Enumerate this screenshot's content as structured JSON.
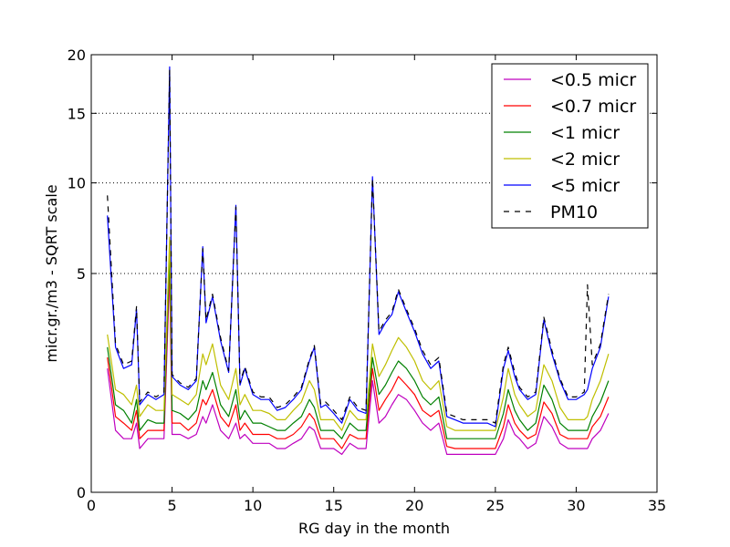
{
  "chart_data": {
    "type": "line",
    "title": "",
    "xlabel": "RG day in the month",
    "ylabel": "micr.gr./m3 - SQRT scale",
    "xlim": [
      0,
      35
    ],
    "ylim": [
      0,
      20
    ],
    "y_scale": "sqrt",
    "x_ticks": [
      0,
      5,
      10,
      15,
      20,
      25,
      30,
      35
    ],
    "y_ticks": [
      0,
      5,
      10,
      15,
      20
    ],
    "grid": "horizontal dotted at y ticks",
    "legend_position": "upper right",
    "x": [
      1.0,
      1.5,
      2.0,
      2.5,
      2.8,
      3.0,
      3.5,
      4.0,
      4.5,
      4.85,
      5.0,
      5.5,
      6.0,
      6.5,
      6.9,
      7.1,
      7.5,
      8.0,
      8.5,
      8.95,
      9.2,
      9.5,
      10.0,
      10.5,
      11.0,
      11.5,
      12.0,
      12.5,
      13.0,
      13.5,
      13.8,
      14.2,
      14.5,
      15.0,
      15.5,
      16.0,
      16.5,
      17.0,
      17.4,
      17.8,
      18.2,
      18.6,
      19.0,
      19.5,
      20.0,
      20.5,
      21.0,
      21.5,
      22.0,
      22.5,
      23.0,
      23.5,
      24.0,
      24.5,
      25.0,
      25.5,
      25.8,
      26.2,
      26.5,
      27.0,
      27.5,
      28.0,
      28.5,
      29.0,
      29.5,
      30.0,
      30.5,
      30.7,
      31.0,
      31.5,
      32.0
    ],
    "series": [
      {
        "name": "<0.5 micr",
        "color": "#bf00bf",
        "dash": "solid",
        "values": [
          1.6,
          0.4,
          0.3,
          0.3,
          0.5,
          0.2,
          0.3,
          0.3,
          0.3,
          5.0,
          0.35,
          0.35,
          0.3,
          0.35,
          0.6,
          0.5,
          0.8,
          0.4,
          0.3,
          0.5,
          0.3,
          0.35,
          0.25,
          0.25,
          0.25,
          0.2,
          0.2,
          0.25,
          0.3,
          0.45,
          0.4,
          0.2,
          0.2,
          0.2,
          0.15,
          0.25,
          0.2,
          0.2,
          1.3,
          0.5,
          0.6,
          0.8,
          1.0,
          0.9,
          0.7,
          0.5,
          0.4,
          0.5,
          0.15,
          0.15,
          0.15,
          0.15,
          0.15,
          0.15,
          0.15,
          0.3,
          0.55,
          0.35,
          0.3,
          0.2,
          0.25,
          0.6,
          0.45,
          0.25,
          0.2,
          0.2,
          0.2,
          0.2,
          0.3,
          0.4,
          0.65
        ]
      },
      {
        "name": "<0.7 micr",
        "color": "#ff0000",
        "dash": "solid",
        "values": [
          1.9,
          0.6,
          0.5,
          0.4,
          0.7,
          0.3,
          0.4,
          0.4,
          0.4,
          5.5,
          0.5,
          0.5,
          0.4,
          0.5,
          0.9,
          0.8,
          1.1,
          0.6,
          0.45,
          0.8,
          0.4,
          0.5,
          0.35,
          0.35,
          0.35,
          0.3,
          0.3,
          0.35,
          0.45,
          0.65,
          0.55,
          0.3,
          0.3,
          0.3,
          0.2,
          0.35,
          0.3,
          0.3,
          1.6,
          0.7,
          0.9,
          1.1,
          1.4,
          1.2,
          1.0,
          0.7,
          0.6,
          0.7,
          0.22,
          0.2,
          0.2,
          0.2,
          0.2,
          0.2,
          0.2,
          0.45,
          0.8,
          0.5,
          0.4,
          0.3,
          0.35,
          0.85,
          0.65,
          0.35,
          0.3,
          0.3,
          0.3,
          0.3,
          0.45,
          0.6,
          0.95
        ]
      },
      {
        "name": "<1 micr",
        "color": "#008000",
        "dash": "solid",
        "values": [
          2.2,
          0.8,
          0.7,
          0.5,
          0.9,
          0.4,
          0.55,
          0.5,
          0.5,
          6.0,
          0.7,
          0.65,
          0.55,
          0.7,
          1.3,
          1.1,
          1.5,
          0.8,
          0.6,
          1.1,
          0.55,
          0.7,
          0.5,
          0.5,
          0.45,
          0.4,
          0.4,
          0.5,
          0.6,
          0.9,
          0.75,
          0.4,
          0.4,
          0.4,
          0.3,
          0.5,
          0.4,
          0.4,
          1.9,
          1.0,
          1.2,
          1.5,
          1.8,
          1.6,
          1.3,
          0.95,
          0.8,
          0.95,
          0.3,
          0.3,
          0.3,
          0.3,
          0.3,
          0.3,
          0.3,
          0.65,
          1.1,
          0.7,
          0.55,
          0.4,
          0.5,
          1.2,
          0.9,
          0.5,
          0.4,
          0.4,
          0.4,
          0.4,
          0.6,
          0.85,
          1.3
        ]
      },
      {
        "name": "<2 micr",
        "color": "#bfbf00",
        "dash": "solid",
        "values": [
          2.6,
          1.1,
          1.0,
          0.8,
          1.2,
          0.6,
          0.8,
          0.7,
          0.7,
          6.8,
          1.0,
          0.9,
          0.8,
          1.0,
          2.0,
          1.7,
          2.3,
          1.2,
          0.9,
          1.6,
          0.8,
          1.0,
          0.7,
          0.7,
          0.65,
          0.55,
          0.55,
          0.7,
          0.85,
          1.3,
          1.1,
          0.55,
          0.55,
          0.55,
          0.4,
          0.7,
          0.55,
          0.55,
          2.3,
          1.4,
          1.7,
          2.1,
          2.5,
          2.2,
          1.8,
          1.3,
          1.1,
          1.3,
          0.45,
          0.4,
          0.4,
          0.4,
          0.4,
          0.4,
          0.4,
          0.95,
          1.6,
          1.0,
          0.8,
          0.6,
          0.7,
          1.7,
          1.3,
          0.75,
          0.55,
          0.55,
          0.55,
          0.6,
          0.9,
          1.3,
          2.0
        ]
      },
      {
        "name": "<5 micr",
        "color": "#0000ff",
        "dash": "solid",
        "values": [
          8.0,
          2.2,
          1.6,
          1.7,
          3.5,
          0.8,
          1.0,
          0.9,
          1.0,
          18.9,
          1.4,
          1.2,
          1.1,
          1.3,
          6.3,
          3.0,
          4.0,
          2.4,
          1.5,
          8.6,
          1.2,
          1.6,
          1.0,
          0.9,
          0.9,
          0.7,
          0.75,
          0.9,
          1.1,
          1.8,
          2.2,
          0.75,
          0.8,
          0.65,
          0.5,
          0.9,
          0.7,
          0.65,
          10.4,
          2.6,
          3.0,
          3.3,
          4.2,
          3.4,
          2.7,
          2.0,
          1.6,
          1.8,
          0.6,
          0.55,
          0.5,
          0.5,
          0.5,
          0.5,
          0.45,
          1.6,
          2.1,
          1.4,
          1.1,
          0.9,
          1.0,
          3.1,
          2.0,
          1.3,
          0.9,
          0.9,
          1.0,
          1.1,
          1.6,
          2.2,
          4.0
        ]
      },
      {
        "name": "PM10",
        "color": "#000000",
        "dash": "dashed",
        "values": [
          9.2,
          2.3,
          1.7,
          1.8,
          3.6,
          0.85,
          1.05,
          0.95,
          1.05,
          18.6,
          1.45,
          1.25,
          1.15,
          1.35,
          6.2,
          3.1,
          4.1,
          2.5,
          1.55,
          8.5,
          1.25,
          1.65,
          1.05,
          0.95,
          0.95,
          0.75,
          0.8,
          0.95,
          1.15,
          1.85,
          2.25,
          0.8,
          0.85,
          0.7,
          0.55,
          0.95,
          0.75,
          0.7,
          10.3,
          2.7,
          3.1,
          3.4,
          4.3,
          3.5,
          2.8,
          2.1,
          1.7,
          1.9,
          0.65,
          0.6,
          0.55,
          0.55,
          0.55,
          0.55,
          0.5,
          1.7,
          2.2,
          1.5,
          1.15,
          0.95,
          1.05,
          3.2,
          2.1,
          1.35,
          0.95,
          0.95,
          1.05,
          4.5,
          1.7,
          2.3,
          4.1
        ]
      }
    ]
  }
}
